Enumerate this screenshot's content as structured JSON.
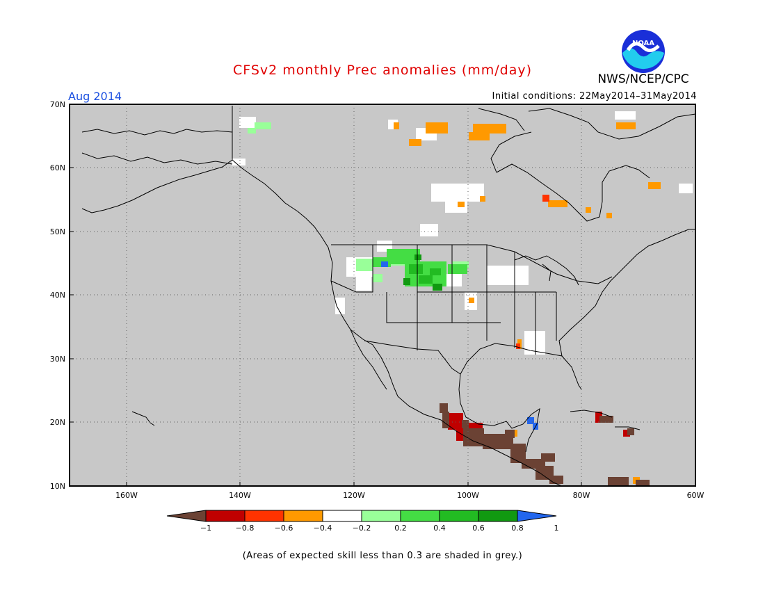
{
  "header": {
    "title": "CFSv2 monthly Prec anomalies (mm/day)",
    "agency": "NWS/NCEP/CPC",
    "month": "Aug 2014",
    "initial_conditions": "Initial conditions: 22May2014–31May2014",
    "logo_text": "NOAA"
  },
  "map": {
    "lat_labels": [
      "70N",
      "60N",
      "50N",
      "40N",
      "30N",
      "20N",
      "10N"
    ],
    "lon_labels": [
      "160W",
      "140W",
      "120W",
      "100W",
      "80W",
      "60W"
    ],
    "colors": {
      "land_shade": "#c8c8c8",
      "coast": "#000000",
      "grid": "#606060"
    }
  },
  "legend": {
    "labels": [
      "−1",
      "−0.8",
      "−0.6",
      "−0.4",
      "−0.2",
      "0.2",
      "0.4",
      "0.6",
      "0.8",
      "1"
    ],
    "colors": [
      "#6b4234",
      "#c00000",
      "#ff3300",
      "#ff9900",
      "#ffffff",
      "#99ff99",
      "#44dd44",
      "#22bb22",
      "#119911",
      "#2266ee"
    ],
    "note": "(Areas of expected skill less than 0.3 are shaded in grey.)"
  }
}
